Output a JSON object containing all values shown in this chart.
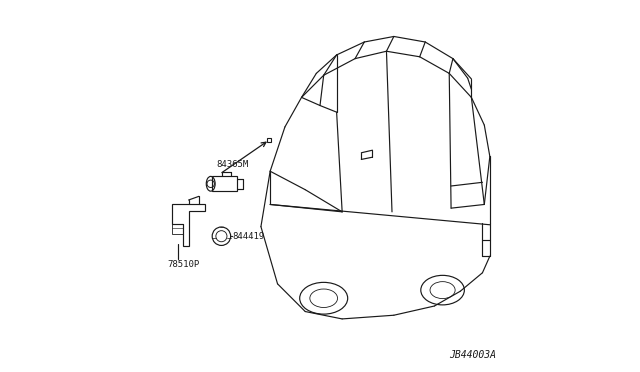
{
  "bg_color": "#ffffff",
  "line_color": "#1a1a1a",
  "diagram_id": "JB44003A",
  "label_84365M": "84365M",
  "label_78510P": "78510P",
  "label_844419": "844419",
  "font_size_labels": 6.5,
  "font_size_id": 7.0,
  "line_width": 0.85
}
